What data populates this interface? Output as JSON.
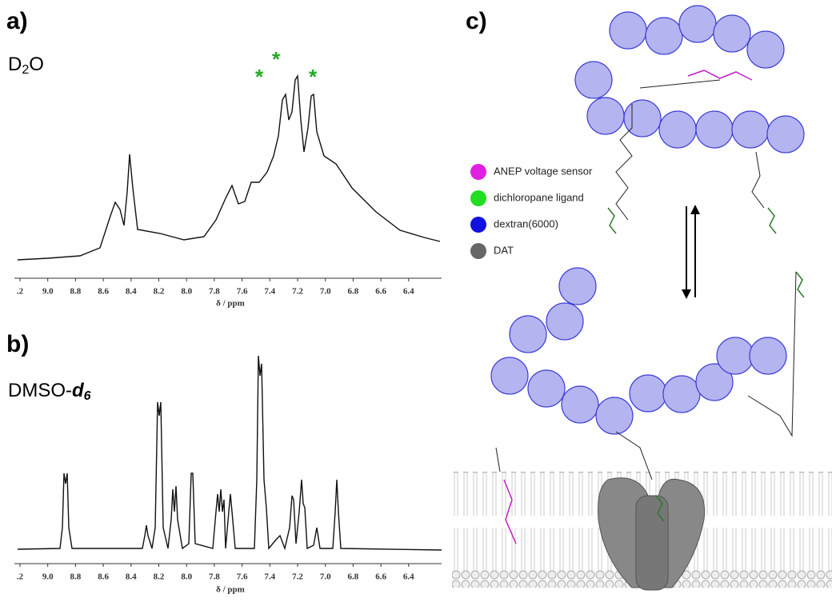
{
  "panel_a": {
    "label": "a)",
    "solvent": [
      "D",
      "2",
      "O"
    ],
    "peak_marks": [
      "*",
      "*",
      "*"
    ],
    "xticks": [
      ".2",
      "9.0",
      "8.8",
      "8.6",
      "8.4",
      "8.2",
      "8.0",
      "7.8",
      "7.6",
      "7.4",
      "7.2",
      "7.0",
      "6.8",
      "6.6",
      "6.4"
    ],
    "xlabel": "δ / ppm"
  },
  "panel_b": {
    "label": "b)",
    "solvent": [
      "DMSO-",
      "d",
      "6"
    ],
    "xticks": [
      ".2",
      "9.0",
      "8.8",
      "8.6",
      "8.4",
      "8.2",
      "8.0",
      "7.8",
      "7.6",
      "7.4",
      "7.2",
      "7.0",
      "6.8",
      "6.6",
      "6.4"
    ],
    "xlabel": "δ / ppm"
  },
  "panel_c": {
    "label": "c)",
    "legend": [
      "ANEP voltage sensor",
      "dichloropane ligand",
      "dextran(6000)",
      "DAT"
    ]
  }
}
